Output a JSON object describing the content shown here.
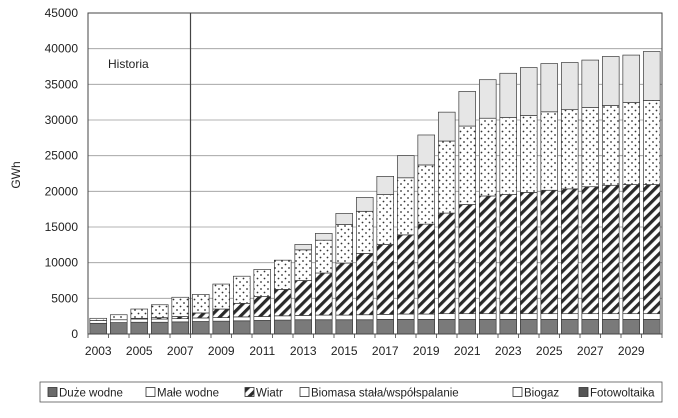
{
  "chart_data": {
    "type": "bar",
    "stacked": true,
    "title": "",
    "xlabel": "",
    "ylabel": "GWh",
    "ylim": [
      0,
      45000
    ],
    "yticks": [
      0,
      5000,
      10000,
      15000,
      20000,
      25000,
      30000,
      35000,
      40000,
      45000
    ],
    "xticks_shown": [
      "2003",
      "2005",
      "2007",
      "2009",
      "2011",
      "2013",
      "2015",
      "2017",
      "2019",
      "2021",
      "2023",
      "2025",
      "2027",
      "2029"
    ],
    "grid": "horizontal",
    "legend_position": "bottom",
    "annotation": {
      "text": "Historia",
      "divider_after": "2007"
    },
    "categories": [
      "2003",
      "2004",
      "2005",
      "2006",
      "2007",
      "2008",
      "2009",
      "2010",
      "2011",
      "2012",
      "2013",
      "2014",
      "2015",
      "2016",
      "2017",
      "2018",
      "2019",
      "2020",
      "2021",
      "2022",
      "2023",
      "2024",
      "2025",
      "2026",
      "2027",
      "2028",
      "2029",
      "2030"
    ],
    "series": [
      {
        "name": "Duże wodne",
        "values": [
          1500,
          1600,
          1650,
          1650,
          1700,
          1750,
          1800,
          1850,
          1900,
          1950,
          2000,
          2000,
          2000,
          2000,
          2050,
          2050,
          2050,
          2050,
          2050,
          2050,
          2050,
          2050,
          2050,
          2050,
          2050,
          2050,
          2050,
          2050
        ]
      },
      {
        "name": "Małe wodne",
        "values": [
          400,
          400,
          450,
          450,
          450,
          500,
          500,
          550,
          550,
          600,
          600,
          650,
          650,
          700,
          700,
          750,
          750,
          800,
          800,
          800,
          800,
          800,
          800,
          800,
          800,
          800,
          800,
          800
        ]
      },
      {
        "name": "Wiatr",
        "values": [
          0,
          0,
          100,
          200,
          300,
          700,
          1200,
          1900,
          2800,
          3700,
          4900,
          5900,
          7300,
          8600,
          9800,
          11100,
          12600,
          14100,
          15300,
          16500,
          16700,
          17000,
          17300,
          17500,
          17800,
          18000,
          18100,
          18100
        ]
      },
      {
        "name": "Biomasa stała/współspalanie",
        "values": [
          0,
          0,
          0,
          0,
          0,
          0,
          0,
          0,
          0,
          0,
          0,
          0,
          0,
          0,
          0,
          0,
          0,
          0,
          0,
          0,
          0,
          0,
          0,
          0,
          0,
          0,
          0,
          0
        ]
      },
      {
        "name": "Biogaz",
        "values": [
          300,
          700,
          1300,
          1800,
          2700,
          2600,
          3500,
          3800,
          3800,
          4100,
          4300,
          4600,
          5400,
          5900,
          7000,
          8000,
          8300,
          10100,
          11000,
          10900,
          10800,
          10800,
          11000,
          11100,
          11100,
          11200,
          11500,
          11800
        ]
      },
      {
        "name": "Fotowoltaika",
        "values": [
          0,
          0,
          0,
          0,
          0,
          0,
          0,
          0,
          0,
          0,
          750,
          950,
          1550,
          1950,
          2550,
          3100,
          4200,
          4050,
          4850,
          5400,
          6200,
          6700,
          6750,
          6600,
          6650,
          6850,
          6650,
          6850
        ]
      }
    ],
    "series_styles": [
      {
        "fill": "#7a7a7a",
        "pattern": "solid"
      },
      {
        "fill": "#ffffff",
        "pattern": "solid"
      },
      {
        "fill": "#ffffff",
        "pattern": "diagonal"
      },
      {
        "fill": "#ffffff",
        "pattern": "solid"
      },
      {
        "fill": "#ffffff",
        "pattern": "dots"
      },
      {
        "fill": "#e6e6e6",
        "pattern": "solid"
      }
    ],
    "legend_styles": [
      {
        "fill": "#6a6a6a",
        "pattern": "solid"
      },
      {
        "fill": "#ffffff",
        "pattern": "solid"
      },
      {
        "fill": "#ffffff",
        "pattern": "diagonal"
      },
      {
        "fill": "#ffffff",
        "pattern": "solid"
      },
      {
        "fill": "#ffffff",
        "pattern": "solid"
      },
      {
        "fill": "#555555",
        "pattern": "solid"
      }
    ]
  }
}
